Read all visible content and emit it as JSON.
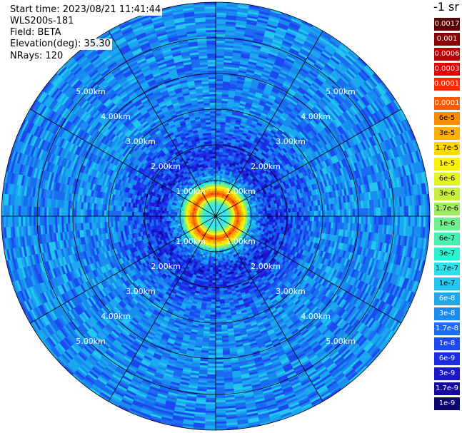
{
  "header": {
    "start_time": "Start time: 2023/08/21 11:41:44",
    "instrument": "WLS200s-181",
    "field": "Field: BETA",
    "elevation": "Elevation(deg): 35.30",
    "nrays": "NRays: 120"
  },
  "chart_data": {
    "type": "heatmap",
    "projection": "polar-ppi",
    "field": "BETA",
    "nrays": 120,
    "elevation_deg": 35.3,
    "max_range_km": 6.0,
    "range_rings_km": [
      1,
      2,
      3,
      4,
      5,
      6
    ],
    "ring_labels": [
      "1.00km",
      "2.00km",
      "3.00km",
      "4.00km",
      "5.00km"
    ],
    "radial_lines_deg": [
      0,
      30,
      60,
      90,
      120,
      150,
      180,
      210,
      240,
      270,
      300,
      330
    ],
    "profile": [
      {
        "range_km": 0.0,
        "value": 1.7e-07
      },
      {
        "range_km": 0.3,
        "value": 1.7e-07
      },
      {
        "range_km": 0.5,
        "value": 6e-06
      },
      {
        "range_km": 0.6,
        "value": 0.00017
      },
      {
        "range_km": 0.8,
        "value": 1e-05
      },
      {
        "range_km": 1.0,
        "value": 6e-08
      },
      {
        "range_km": 1.5,
        "value": 6e-09
      },
      {
        "range_km": 2.0,
        "value": 1e-08
      },
      {
        "range_km": 3.0,
        "value": 3e-08
      },
      {
        "range_km": 4.5,
        "value": 3e-08
      },
      {
        "range_km": 6.0,
        "value": 3e-08
      }
    ],
    "colorbar": {
      "title": "-1 sr",
      "entries": [
        {
          "label": "0.0017",
          "color": "#5a0000"
        },
        {
          "label": "0.001",
          "color": "#8a0000"
        },
        {
          "label": "0.0006",
          "color": "#b30000"
        },
        {
          "label": "0.0003",
          "color": "#e00000"
        },
        {
          "label": "0.00017",
          "color": "#ff2a00"
        },
        {
          "label": "0.0001",
          "color": "#ff5a00"
        },
        {
          "label": "6e-5",
          "color": "#ff8c00"
        },
        {
          "label": "3e-5",
          "color": "#ffb000"
        },
        {
          "label": "1.7e-5",
          "color": "#ffd800"
        },
        {
          "label": "1e-5",
          "color": "#fff200"
        },
        {
          "label": "6e-6",
          "color": "#e4f51a"
        },
        {
          "label": "3e-6",
          "color": "#c6f03a"
        },
        {
          "label": "1.7e-6",
          "color": "#9eea63"
        },
        {
          "label": "1e-6",
          "color": "#6ff08c"
        },
        {
          "label": "6e-7",
          "color": "#45f0b0"
        },
        {
          "label": "3e-7",
          "color": "#2ef0d2"
        },
        {
          "label": "1.7e-7",
          "color": "#29e2ec"
        },
        {
          "label": "1e-7",
          "color": "#22c6ee"
        },
        {
          "label": "6e-8",
          "color": "#1aa8f0"
        },
        {
          "label": "3e-8",
          "color": "#1a8cf0"
        },
        {
          "label": "1.7e-8",
          "color": "#1a6cf0"
        },
        {
          "label": "1e-8",
          "color": "#1a4af0"
        },
        {
          "label": "6e-9",
          "color": "#1a2ce6"
        },
        {
          "label": "3e-9",
          "color": "#1a16cc"
        },
        {
          "label": "1.7e-9",
          "color": "#140aa0"
        },
        {
          "label": "1e-9",
          "color": "#0a0670"
        }
      ]
    }
  }
}
